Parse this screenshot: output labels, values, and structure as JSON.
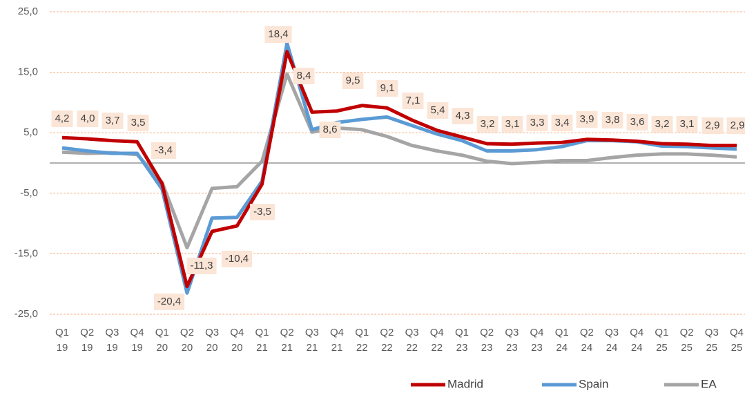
{
  "chart_data": {
    "type": "line",
    "categories": [
      [
        "Q1",
        "19"
      ],
      [
        "Q2",
        "19"
      ],
      [
        "Q3",
        "19"
      ],
      [
        "Q4",
        "19"
      ],
      [
        "Q1",
        "20"
      ],
      [
        "Q2",
        "20"
      ],
      [
        "Q3",
        "20"
      ],
      [
        "Q4",
        "20"
      ],
      [
        "Q1",
        "21"
      ],
      [
        "Q2",
        "21"
      ],
      [
        "Q3",
        "21"
      ],
      [
        "Q4",
        "21"
      ],
      [
        "Q1",
        "22"
      ],
      [
        "Q2",
        "22"
      ],
      [
        "Q3",
        "22"
      ],
      [
        "Q4",
        "22"
      ],
      [
        "Q1",
        "23"
      ],
      [
        "Q2",
        "23"
      ],
      [
        "Q3",
        "23"
      ],
      [
        "Q4",
        "23"
      ],
      [
        "Q1",
        "24"
      ],
      [
        "Q2",
        "24"
      ],
      [
        "Q3",
        "24"
      ],
      [
        "Q4",
        "24"
      ],
      [
        "Q1",
        "25"
      ],
      [
        "Q2",
        "25"
      ],
      [
        "Q3",
        "25"
      ],
      [
        "Q4",
        "25"
      ]
    ],
    "series": [
      {
        "name": "Madrid",
        "color": "#c00000",
        "values": [
          4.2,
          4.0,
          3.7,
          3.5,
          -3.4,
          -20.4,
          -11.3,
          -10.4,
          -3.5,
          18.4,
          8.4,
          8.6,
          9.5,
          9.1,
          7.1,
          5.4,
          4.3,
          3.2,
          3.1,
          3.3,
          3.4,
          3.9,
          3.8,
          3.6,
          3.2,
          3.1,
          2.9,
          2.9
        ],
        "value_labels": [
          "4,2",
          "4,0",
          "3,7",
          "3,5",
          "-3,4",
          "-20,4",
          "-11,3",
          "-10,4",
          "-3,5",
          "18,4",
          "8,4",
          "8,6",
          "9,5",
          "9,1",
          "7,1",
          "5,4",
          "4,3",
          "3,2",
          "3,1",
          "3,3",
          "3,4",
          "3,9",
          "3,8",
          "3,6",
          "3,2",
          "3,1",
          "2,9",
          "2,9"
        ]
      },
      {
        "name": "Spain",
        "color": "#5b9bd5",
        "values": [
          2.5,
          2.0,
          1.6,
          1.6,
          -4.3,
          -21.5,
          -9.1,
          -9.0,
          -3.0,
          19.8,
          5.5,
          6.7,
          7.2,
          7.6,
          6.2,
          4.8,
          3.7,
          2.0,
          2.0,
          2.2,
          2.7,
          3.7,
          3.7,
          3.5,
          2.8,
          2.7,
          2.5,
          2.3
        ]
      },
      {
        "name": "EA",
        "color": "#a5a5a5",
        "values": [
          1.8,
          1.6,
          1.7,
          1.4,
          -3.2,
          -14.0,
          -4.2,
          -3.9,
          0.3,
          14.7,
          5.1,
          5.8,
          5.5,
          4.4,
          2.9,
          2.0,
          1.3,
          0.3,
          -0.1,
          0.1,
          0.4,
          0.4,
          0.9,
          1.3,
          1.5,
          1.5,
          1.3,
          1.0
        ]
      }
    ],
    "ylim": [
      -25,
      25
    ],
    "yticks": [
      {
        "value": -25,
        "label": "-25,0"
      },
      {
        "value": -15,
        "label": "-15,0"
      },
      {
        "value": -5,
        "label": "-5,0"
      },
      {
        "value": 5,
        "label": "5,0"
      },
      {
        "value": 15,
        "label": "15,0"
      },
      {
        "value": 25,
        "label": "25,0"
      }
    ],
    "grid": true,
    "legend": "bottom"
  }
}
